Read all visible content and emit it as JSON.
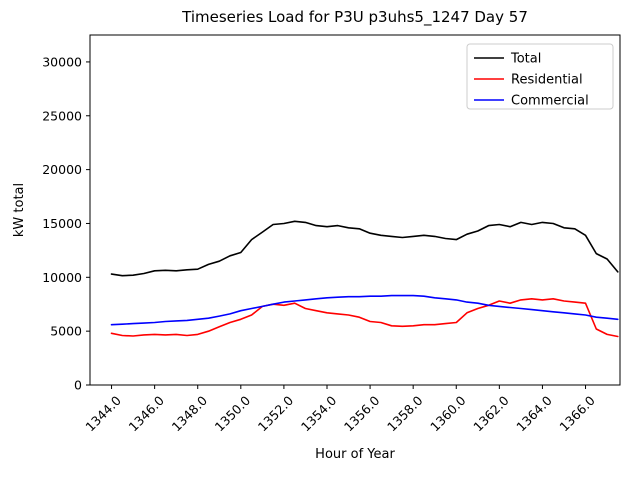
{
  "figure": {
    "title": "Timeseries Load for P3U p3uhs5_1247  Day 57",
    "xlabel": "Hour of Year",
    "ylabel": "kW total"
  },
  "chart_data": {
    "type": "line",
    "title": "Timeseries Load for P3U p3uhs5_1247  Day 57",
    "xlabel": "Hour of Year",
    "ylabel": "kW total",
    "xlim": [
      1343.0,
      1367.6
    ],
    "ylim": [
      0,
      32500
    ],
    "grid": false,
    "legend_position": "upper right",
    "xticks": [
      1344,
      1346,
      1348,
      1350,
      1352,
      1354,
      1356,
      1358,
      1360,
      1362,
      1364,
      1366
    ],
    "xtick_labels": [
      "1344.0",
      "1346.0",
      "1348.0",
      "1350.0",
      "1352.0",
      "1354.0",
      "1356.0",
      "1358.0",
      "1360.0",
      "1362.0",
      "1364.0",
      "1366.0"
    ],
    "yticks": [
      0,
      5000,
      10000,
      15000,
      20000,
      25000,
      30000
    ],
    "ytick_labels": [
      "0",
      "5000",
      "10000",
      "15000",
      "20000",
      "25000",
      "30000"
    ],
    "x": [
      1344.0,
      1344.5,
      1345.0,
      1345.5,
      1346.0,
      1346.5,
      1347.0,
      1347.5,
      1348.0,
      1348.5,
      1349.0,
      1349.5,
      1350.0,
      1350.5,
      1351.0,
      1351.5,
      1352.0,
      1352.5,
      1353.0,
      1353.5,
      1354.0,
      1354.5,
      1355.0,
      1355.5,
      1356.0,
      1356.5,
      1357.0,
      1357.5,
      1358.0,
      1358.5,
      1359.0,
      1359.5,
      1360.0,
      1360.5,
      1361.0,
      1361.5,
      1362.0,
      1362.5,
      1363.0,
      1363.5,
      1364.0,
      1364.5,
      1365.0,
      1365.5,
      1366.0,
      1366.5,
      1367.0,
      1367.5
    ],
    "series": [
      {
        "name": "Total",
        "color": "#000000",
        "values": [
          10300,
          10150,
          10200,
          10350,
          10600,
          10650,
          10600,
          10700,
          10750,
          11200,
          11500,
          12000,
          12300,
          13500,
          14200,
          14900,
          15000,
          15200,
          15100,
          14800,
          14700,
          14800,
          14600,
          14500,
          14100,
          13900,
          13800,
          13700,
          13800,
          13900,
          13800,
          13600,
          13500,
          14000,
          14300,
          14800,
          14900,
          14700,
          15100,
          14900,
          15100,
          15000,
          14600,
          14500,
          13900,
          12200,
          11700,
          10500
        ]
      },
      {
        "name": "Residential",
        "color": "#ff0000",
        "values": [
          4800,
          4600,
          4550,
          4650,
          4700,
          4650,
          4700,
          4600,
          4700,
          5000,
          5400,
          5800,
          6100,
          6500,
          7300,
          7500,
          7400,
          7600,
          7100,
          6900,
          6700,
          6600,
          6500,
          6300,
          5900,
          5800,
          5500,
          5450,
          5500,
          5600,
          5600,
          5700,
          5800,
          6700,
          7100,
          7400,
          7800,
          7600,
          7900,
          8000,
          7900,
          8000,
          7800,
          7700,
          7600,
          5200,
          4700,
          4500
        ]
      },
      {
        "name": "Commercial",
        "color": "#0000ff",
        "values": [
          5600,
          5650,
          5700,
          5750,
          5800,
          5900,
          5950,
          6000,
          6100,
          6200,
          6400,
          6600,
          6900,
          7100,
          7300,
          7500,
          7700,
          7800,
          7900,
          8000,
          8100,
          8150,
          8200,
          8200,
          8250,
          8250,
          8300,
          8300,
          8300,
          8250,
          8100,
          8000,
          7900,
          7700,
          7600,
          7400,
          7300,
          7200,
          7100,
          7000,
          6900,
          6800,
          6700,
          6600,
          6500,
          6300,
          6200,
          6100
        ]
      }
    ]
  }
}
